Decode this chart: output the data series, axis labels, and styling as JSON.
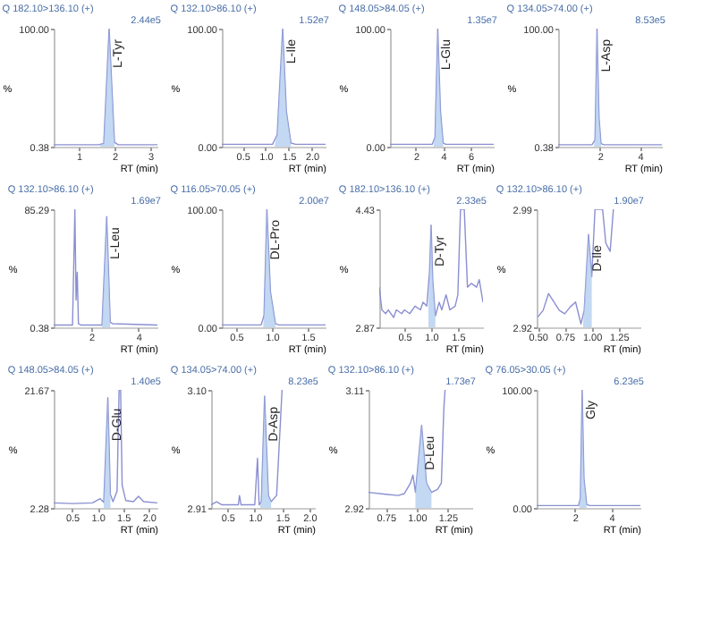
{
  "chart_data": [
    {
      "type": "line",
      "title": "Q 182.10>136.10 (+)",
      "xlabel": "RT (min)",
      "ylabel": "%",
      "xlim": [
        0.3,
        3.2
      ],
      "xticks": [
        1,
        2,
        3
      ],
      "ylim": [
        0.38,
        100
      ],
      "yticks": [
        0.38,
        {
          "value": 100,
          "label": "100.00"
        }
      ],
      "series": [
        {
          "color": "#8a8fd0",
          "x": [
            0.3,
            1.55,
            1.7,
            1.85,
            2.0,
            2.1,
            3.2
          ],
          "values": [
            2,
            2,
            3,
            100,
            4,
            2,
            2
          ]
        },
        {
          "type": "area",
          "color": "#a9c8ec",
          "x": [
            1.6,
            1.7,
            1.85,
            2.0
          ],
          "values": [
            2,
            3,
            100,
            4
          ]
        }
      ],
      "annotations": [
        {
          "text": "L-Tyr",
          "x": 1.85,
          "y": 100
        },
        "2.44e5"
      ]
    },
    {
      "type": "line",
      "title": "Q 132.10>86.10 (+)",
      "xlabel": "RT (min)",
      "ylabel": "%",
      "xlim": [
        0.05,
        2.3
      ],
      "xticks": [
        0.5,
        {
          "value": 1,
          "label": "1.0"
        },
        1.5,
        {
          "value": 2,
          "label": "2.0"
        }
      ],
      "ylim": [
        0,
        100
      ],
      "yticks": [
        {
          "value": 0,
          "label": "0.00"
        },
        {
          "value": 100,
          "label": "100.00"
        }
      ],
      "series": [
        {
          "color": "#8a8fd0",
          "x": [
            0.05,
            1.15,
            1.25,
            1.37,
            1.45,
            1.55,
            1.65,
            2.3
          ],
          "values": [
            2,
            2,
            10,
            100,
            30,
            3,
            2,
            2
          ]
        },
        {
          "type": "area",
          "color": "#a9c8ec",
          "x": [
            1.2,
            1.25,
            1.37,
            1.45,
            1.55
          ],
          "values": [
            2,
            10,
            100,
            30,
            3
          ]
        }
      ],
      "annotations": [
        {
          "text": "L-Ile",
          "x": 1.37,
          "y": 100
        },
        "1.52e7"
      ]
    },
    {
      "type": "line",
      "title": "Q 148.05>84.05 (+)",
      "xlabel": "RT (min)",
      "ylabel": "%",
      "xlim": [
        0.1,
        7.7
      ],
      "xticks": [
        2,
        4,
        6
      ],
      "ylim": [
        0,
        100
      ],
      "yticks": [
        {
          "value": 0,
          "label": "0.00"
        },
        {
          "value": 100,
          "label": "100.00"
        }
      ],
      "series": [
        {
          "color": "#8a8fd0",
          "x": [
            0.1,
            3.2,
            3.4,
            3.6,
            3.8,
            4.0,
            4.2,
            7.7
          ],
          "values": [
            2,
            2,
            8,
            100,
            30,
            3,
            2,
            2
          ]
        },
        {
          "type": "area",
          "color": "#a9c8ec",
          "x": [
            3.3,
            3.4,
            3.6,
            3.8,
            4.0
          ],
          "values": [
            2,
            8,
            100,
            30,
            3
          ]
        }
      ],
      "annotations": [
        {
          "text": "L-Glu",
          "x": 3.6,
          "y": 100
        },
        "1.35e7"
      ]
    },
    {
      "type": "line",
      "title": "Q 134.05>74.00 (+)",
      "xlabel": "RT (min)",
      "ylabel": "%",
      "xlim": [
        -0.1,
        5.1
      ],
      "xticks": [
        2,
        4
      ],
      "ylim": [
        0.38,
        100
      ],
      "yticks": [
        0.38,
        {
          "value": 100,
          "label": "100.00"
        }
      ],
      "series": [
        {
          "color": "#8a8fd0",
          "x": [
            -0.1,
            1.6,
            1.75,
            1.85,
            1.95,
            2.05,
            2.2,
            5.1
          ],
          "values": [
            2,
            2,
            6,
            100,
            25,
            3,
            2,
            2
          ]
        },
        {
          "type": "area",
          "color": "#a9c8ec",
          "x": [
            1.7,
            1.75,
            1.85,
            1.95,
            2.05
          ],
          "values": [
            2,
            6,
            100,
            25,
            3
          ]
        }
      ],
      "annotations": [
        {
          "text": "L-Asp",
          "x": 1.85,
          "y": 100
        },
        "8.53e5"
      ]
    },
    {
      "type": "line",
      "title": "Q 132.10>86.10 (+)",
      "xlabel": "RT (min)",
      "ylabel": "%",
      "xlim": [
        0.4,
        4.8
      ],
      "xticks": [
        2,
        4
      ],
      "ylim": [
        0.38,
        85.29
      ],
      "yticks": [
        0.38,
        85.29
      ],
      "series": [
        {
          "color": "#8a8fd0",
          "x": [
            0.4,
            1.2,
            1.3,
            1.35,
            1.4,
            1.45,
            1.55,
            2.45,
            2.65,
            2.8,
            2.9,
            4.8
          ],
          "values": [
            2,
            2,
            85,
            20,
            40,
            3,
            2,
            2,
            80,
            4,
            3,
            2
          ]
        },
        {
          "type": "area",
          "color": "#a9c8ec",
          "x": [
            2.45,
            2.65,
            2.8
          ],
          "values": [
            2,
            80,
            4
          ]
        }
      ],
      "annotations": [
        {
          "text": "L-Leu",
          "x": 2.65,
          "y": 80
        },
        "1.69e7"
      ]
    },
    {
      "type": "line",
      "title": "Q 116.05>70.05 (+)",
      "xlabel": "RT (min)",
      "ylabel": "%",
      "xlim": [
        0.3,
        1.75
      ],
      "xticks": [
        0.5,
        {
          "value": 1,
          "label": "1.0"
        },
        1.5
      ],
      "ylim": [
        0,
        100
      ],
      "yticks": [
        {
          "value": 0,
          "label": "0.00"
        },
        {
          "value": 100,
          "label": "100.00"
        }
      ],
      "series": [
        {
          "color": "#8a8fd0",
          "x": [
            0.3,
            0.85,
            0.89,
            0.93,
            0.98,
            1.05,
            1.1,
            1.75
          ],
          "values": [
            2,
            2,
            10,
            100,
            30,
            3,
            2,
            2
          ]
        },
        {
          "type": "area",
          "color": "#a9c8ec",
          "x": [
            0.88,
            0.89,
            0.93,
            0.98,
            1.05
          ],
          "values": [
            2,
            10,
            100,
            30,
            3
          ]
        }
      ],
      "annotations": [
        {
          "text": "DL-Pro",
          "x": 0.93,
          "y": 100
        },
        "2.00e7"
      ]
    },
    {
      "type": "line",
      "title": "Q 182.10>136.10 (+)",
      "xlabel": "RT (min)",
      "ylabel": "%",
      "xlim": [
        0.03,
        1.97
      ],
      "xticks": [
        0.5,
        {
          "value": 1,
          "label": "1.0"
        },
        1.5
      ],
      "ylim": [
        2.87,
        4.43
      ],
      "yticks": [
        2.87,
        4.43
      ],
      "series": [
        {
          "color": "#8a8fd0",
          "x": [
            0.03,
            0.08,
            0.15,
            0.2,
            0.3,
            0.35,
            0.45,
            0.5,
            0.6,
            0.7,
            0.8,
            0.85,
            0.92,
            0.97,
            1.0,
            1.03,
            1.08,
            1.15,
            1.2,
            1.28,
            1.35,
            1.45,
            1.5,
            1.55,
            1.62,
            1.68,
            1.75,
            1.85,
            1.9,
            1.97
          ],
          "values": [
            3.4,
            3.1,
            3.05,
            3.1,
            3.0,
            3.1,
            3.05,
            3.1,
            3.05,
            3.15,
            3.1,
            3.2,
            3.15,
            3.6,
            4.22,
            3.5,
            3.02,
            3.2,
            3.1,
            3.3,
            3.1,
            3.15,
            3.3,
            4.43,
            4.43,
            3.4,
            3.45,
            3.4,
            3.5,
            3.2
          ]
        },
        {
          "type": "area",
          "color": "#a9c8ec",
          "x": [
            0.95,
            0.97,
            1.0,
            1.03,
            1.08
          ],
          "values": [
            3.18,
            3.6,
            4.22,
            3.5,
            3.02
          ]
        }
      ],
      "annotations": [
        {
          "text": "D-Tyr",
          "x": 1.0,
          "y": 4.22
        },
        "2.33e5"
      ]
    },
    {
      "type": "line",
      "title": "Q 132.10>86.10 (+)",
      "xlabel": "RT (min)",
      "ylabel": "%",
      "xlim": [
        0.49,
        1.45
      ],
      "xticks": [
        {
          "value": 0.5,
          "label": "0.50"
        },
        0.75,
        {
          "value": 1,
          "label": "1.00"
        },
        1.25
      ],
      "ylim": [
        2.92,
        2.99
      ],
      "yticks": [
        2.92,
        2.99
      ],
      "series": [
        {
          "color": "#8a8fd0",
          "x": [
            0.5,
            0.55,
            0.6,
            0.65,
            0.7,
            0.75,
            0.8,
            0.85,
            0.9,
            0.93,
            0.97,
            1.0,
            1.03,
            1.1,
            1.13,
            1.17,
            1.2
          ],
          "values": [
            2.926,
            2.93,
            2.94,
            2.935,
            2.93,
            2.928,
            2.932,
            2.935,
            2.922,
            2.93,
            2.975,
            2.95,
            2.99,
            2.99,
            2.97,
            2.965,
            2.99
          ]
        },
        {
          "type": "area",
          "color": "#a9c8ec",
          "x": [
            0.92,
            0.97,
            1.0
          ],
          "values": [
            2.922,
            2.975,
            2.95
          ]
        }
      ],
      "annotations": [
        {
          "text": "D-Ile",
          "x": 0.97,
          "y": 2.975
        },
        "1.90e7"
      ]
    },
    {
      "type": "line",
      "title": "Q 148.05>84.05 (+)",
      "xlabel": "RT (min)",
      "ylabel": "%",
      "xlim": [
        0.14,
        2.17
      ],
      "xticks": [
        0.5,
        {
          "value": 1,
          "label": "1.0"
        },
        1.5,
        {
          "value": 2,
          "label": "2.0"
        }
      ],
      "ylim": [
        2.28,
        21.67
      ],
      "yticks": [
        2.28,
        21.67
      ],
      "series": [
        {
          "color": "#8a8fd0",
          "x": [
            0.14,
            0.5,
            0.9,
            1.05,
            1.12,
            1.2,
            1.25,
            1.3,
            1.38,
            1.42,
            1.45,
            1.48,
            1.55,
            1.7,
            1.8,
            1.9,
            2.17
          ],
          "values": [
            3.1,
            3.0,
            3.1,
            3.8,
            3.2,
            20.4,
            4.5,
            3.3,
            5,
            21.67,
            21.67,
            6,
            3.5,
            3.3,
            4.2,
            3.3,
            3.1
          ]
        },
        {
          "type": "area",
          "color": "#a9c8ec",
          "x": [
            1.12,
            1.2,
            1.25
          ],
          "values": [
            3.2,
            20.4,
            4.5
          ]
        }
      ],
      "annotations": [
        {
          "text": "D-Glu",
          "x": 1.2,
          "y": 20.4
        },
        "1.40e5"
      ]
    },
    {
      "type": "line",
      "title": "Q 134.05>74.00 (+)",
      "xlabel": "RT (min)",
      "ylabel": "%",
      "xlim": [
        0.2,
        2.1
      ],
      "xticks": [
        0.5,
        {
          "value": 1,
          "label": "1.0"
        },
        1.5,
        {
          "value": 2,
          "label": "2.0"
        }
      ],
      "ylim": [
        2.91,
        3.1
      ],
      "yticks": [
        2.91,
        {
          "value": 3.1,
          "label": "3.10"
        }
      ],
      "series": [
        {
          "color": "#8a8fd0",
          "x": [
            0.2,
            0.3,
            0.4,
            0.7,
            0.72,
            0.75,
            1.0,
            1.05,
            1.08,
            1.12,
            1.18,
            1.25,
            1.3,
            1.4,
            1.5
          ],
          "values": [
            2.915,
            2.92,
            2.915,
            2.915,
            2.93,
            2.915,
            2.915,
            2.99,
            2.915,
            2.92,
            3.09,
            2.93,
            2.92,
            2.93,
            3.1
          ]
        },
        {
          "type": "area",
          "color": "#a9c8ec",
          "x": [
            1.1,
            1.12,
            1.18,
            1.25,
            1.3
          ],
          "values": [
            2.915,
            2.92,
            3.09,
            2.93,
            2.92
          ]
        }
      ],
      "annotations": [
        {
          "text": "D-Asp",
          "x": 1.18,
          "y": 3.09
        },
        "8.23e5"
      ]
    },
    {
      "type": "line",
      "title": "Q 132.10>86.10 (+)",
      "xlabel": "RT (min)",
      "ylabel": "%",
      "xlim": [
        0.61,
        1.45
      ],
      "xticks": [
        0.75,
        {
          "value": 1,
          "label": "1.00"
        },
        1.25
      ],
      "ylim": [
        2.92,
        3.11
      ],
      "yticks": [
        2.92,
        3.11
      ],
      "series": [
        {
          "color": "#8a8fd0",
          "x": [
            0.61,
            0.75,
            0.85,
            0.9,
            0.95,
            0.97,
            0.99,
            1.04,
            1.08,
            1.12,
            1.17,
            1.2,
            1.22,
            1.23
          ],
          "values": [
            2.945,
            2.942,
            2.94,
            2.943,
            2.96,
            2.973,
            2.945,
            3.053,
            2.96,
            2.945,
            2.95,
            2.96,
            3.08,
            3.11
          ]
        },
        {
          "type": "area",
          "color": "#a9c8ec",
          "x": [
            0.99,
            1.04,
            1.08,
            1.12
          ],
          "values": [
            2.945,
            3.053,
            2.96,
            2.945
          ]
        }
      ],
      "annotations": [
        {
          "text": "D-Leu",
          "x": 1.04,
          "y": 3.053
        },
        "1.73e7"
      ]
    },
    {
      "type": "line",
      "title": "Q 76.05>30.05 (+)",
      "xlabel": "RT (min)",
      "ylabel": "%",
      "xlim": [
        -0.1,
        5.6
      ],
      "xticks": [
        2,
        4
      ],
      "ylim": [
        0,
        100
      ],
      "yticks": [
        {
          "value": 0,
          "label": "0.00"
        },
        {
          "value": 100,
          "label": "100.00"
        }
      ],
      "series": [
        {
          "color": "#8a8fd0",
          "x": [
            -0.1,
            2.2,
            2.3,
            2.4,
            2.5,
            2.65,
            2.8,
            5.6
          ],
          "values": [
            2,
            2,
            8,
            100,
            25,
            3,
            2,
            2
          ]
        },
        {
          "type": "area",
          "color": "#a9c8ec",
          "x": [
            2.25,
            2.3,
            2.4,
            2.5,
            2.65
          ],
          "values": [
            2,
            8,
            100,
            25,
            3
          ]
        }
      ],
      "annotations": [
        {
          "text": "Gly",
          "x": 2.4,
          "y": 100
        },
        "6.23e5"
      ]
    }
  ]
}
